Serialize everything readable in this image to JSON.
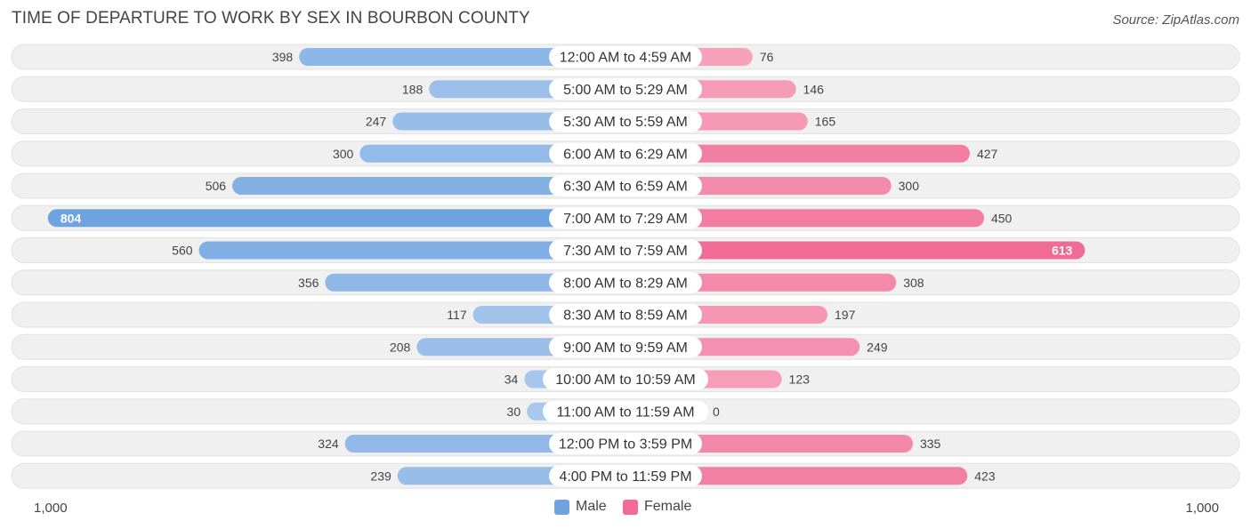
{
  "title": "TIME OF DEPARTURE TO WORK BY SEX IN BOURBON COUNTY",
  "source": "Source: ZipAtlas.com",
  "colors": {
    "male": "#6fa3e0",
    "male_light": "#a9c8ec",
    "female": "#f06b96",
    "female_light": "#f7aac3",
    "row_bg": "#f0f0f0"
  },
  "legend": {
    "male_label": "Male",
    "female_label": "Female"
  },
  "axis": {
    "left_label": "1,000",
    "right_label": "1,000"
  },
  "chart_data": {
    "type": "bar",
    "orientation": "horizontal-diverging",
    "title": "TIME OF DEPARTURE TO WORK BY SEX IN BOURBON COUNTY",
    "categories": [
      "12:00 AM to 4:59 AM",
      "5:00 AM to 5:29 AM",
      "5:30 AM to 5:59 AM",
      "6:00 AM to 6:29 AM",
      "6:30 AM to 6:59 AM",
      "7:00 AM to 7:29 AM",
      "7:30 AM to 7:59 AM",
      "8:00 AM to 8:29 AM",
      "8:30 AM to 8:59 AM",
      "9:00 AM to 9:59 AM",
      "10:00 AM to 10:59 AM",
      "11:00 AM to 11:59 AM",
      "12:00 PM to 3:59 PM",
      "4:00 PM to 11:59 PM"
    ],
    "series": [
      {
        "name": "Male",
        "values": [
          398,
          188,
          247,
          300,
          506,
          804,
          560,
          356,
          117,
          208,
          34,
          30,
          324,
          239
        ]
      },
      {
        "name": "Female",
        "values": [
          76,
          146,
          165,
          427,
          300,
          450,
          613,
          308,
          197,
          249,
          123,
          0,
          335,
          423
        ]
      }
    ],
    "xlim": [
      -1000,
      1000
    ],
    "legend_position": "bottom-center",
    "grid": false
  }
}
